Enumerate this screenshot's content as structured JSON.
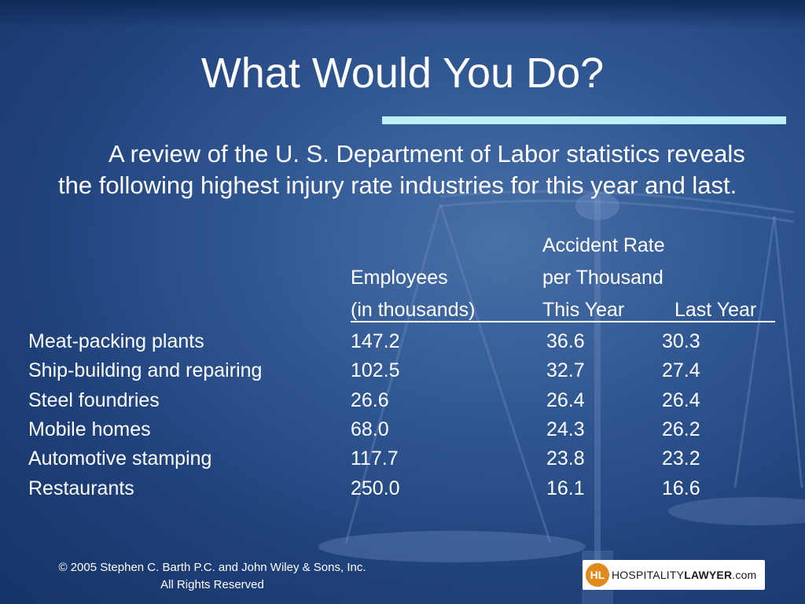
{
  "slide": {
    "title": "What Would You Do?",
    "intro": "A review of the U. S. Department of Labor statistics reveals the following highest injury rate industries for this year and last."
  },
  "table": {
    "header_line1": "Accident Rate",
    "header_employees": "Employees",
    "header_per_thousand": "per Thousand",
    "header_in_thousands": "(in thousands)",
    "header_this_year": "This Year",
    "header_last_year": "Last Year",
    "rows": [
      {
        "industry": "Meat-packing plants",
        "employees": "147.2",
        "this_year": "36.6",
        "last_year": "30.3"
      },
      {
        "industry": "Ship-building and repairing",
        "employees": "102.5",
        "this_year": "32.7",
        "last_year": "27.4"
      },
      {
        "industry": "Steel foundries",
        "employees": "26.6",
        "this_year": "26.4",
        "last_year": "26.4"
      },
      {
        "industry": "Mobile homes",
        "employees": "68.0",
        "this_year": "24.3",
        "last_year": "26.2"
      },
      {
        "industry": "Automotive stamping",
        "employees": "117.7",
        "this_year": "23.8",
        "last_year": "23.2"
      },
      {
        "industry": "Restaurants",
        "employees": "250.0",
        "this_year": "16.1",
        "last_year": "16.6"
      }
    ]
  },
  "footer": {
    "copyright": "© 2005 Stephen C. Barth P.C. and John Wiley & Sons, Inc.",
    "rights": "All Rights Reserved"
  },
  "logo": {
    "mark": "HL",
    "text_light": "HOSPITALITY",
    "text_bold": "LAWYER",
    "text_suffix": ".com"
  },
  "colors": {
    "background": "#2f5590",
    "title_rule": "#bfeeff",
    "logo_mark": "#e08a1e"
  }
}
